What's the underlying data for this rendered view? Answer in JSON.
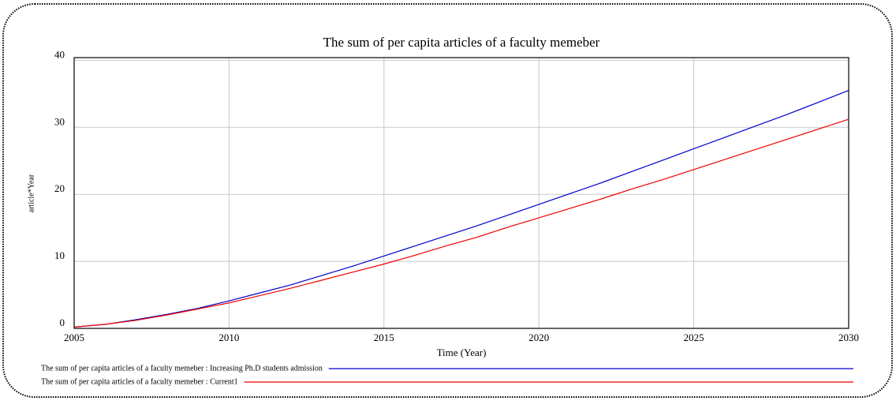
{
  "chart_data": {
    "type": "line",
    "title": "The sum of per capita articles of a faculty memeber",
    "x_label": "Time (Year)",
    "y_label": "article*Year",
    "x": [
      2005,
      2006,
      2007,
      2008,
      2009,
      2010,
      2011,
      2012,
      2013,
      2014,
      2015,
      2016,
      2017,
      2018,
      2019,
      2020,
      2021,
      2022,
      2023,
      2024,
      2025,
      2026,
      2027,
      2028,
      2029,
      2030
    ],
    "series": [
      {
        "name": "The sum of per capita articles of a faculty memeber : Increasing Ph.D students admission",
        "color": "#0000cc",
        "values": [
          0.2,
          0.6,
          1.3,
          2.1,
          3.0,
          4.1,
          5.3,
          6.5,
          7.9,
          9.3,
          10.8,
          12.3,
          13.8,
          15.3,
          16.9,
          18.5,
          20.1,
          21.7,
          23.4,
          25.1,
          26.8,
          28.5,
          30.2,
          31.9,
          33.7,
          35.5
        ]
      },
      {
        "name": "The sum of per capita articles of a faculty memeber : Current1",
        "color": "#ee0000",
        "values": [
          0.2,
          0.6,
          1.2,
          2.0,
          2.9,
          3.8,
          4.9,
          6.0,
          7.2,
          8.4,
          9.6,
          10.9,
          12.3,
          13.6,
          15.1,
          16.5,
          17.9,
          19.3,
          20.8,
          22.2,
          23.7,
          25.2,
          26.7,
          28.2,
          29.7,
          31.2
        ]
      }
    ],
    "xlim": [
      2005,
      2030
    ],
    "xticks": [
      2005,
      2010,
      2015,
      2020,
      2025,
      2030
    ],
    "ylim": [
      0,
      40.4
    ],
    "yticks": [
      0,
      10,
      20,
      30,
      40
    ],
    "grid": true,
    "legend": "bottom"
  }
}
